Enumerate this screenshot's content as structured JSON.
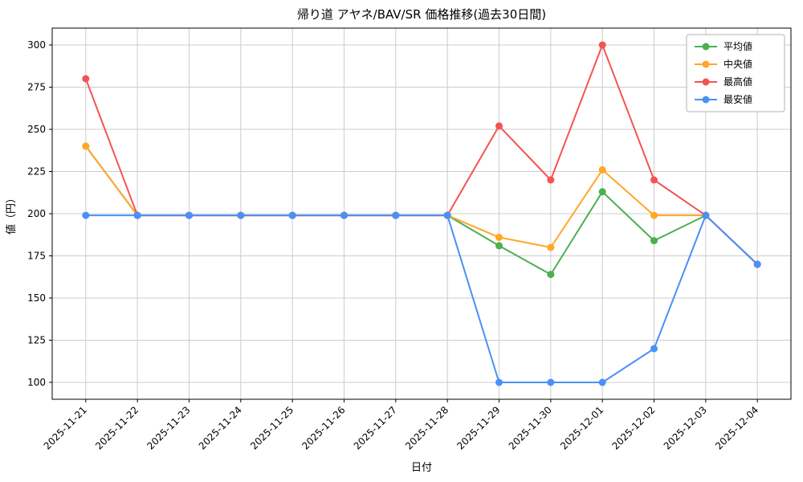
{
  "chart_data": {
    "type": "line",
    "title": "帰り道 アヤネ/BAV/SR 価格推移(過去30日間)",
    "xlabel": "日付",
    "ylabel": "値（円）",
    "categories": [
      "2025-11-21",
      "2025-11-22",
      "2025-11-23",
      "2025-11-24",
      "2025-11-25",
      "2025-11-26",
      "2025-11-27",
      "2025-11-28",
      "2025-11-29",
      "2025-11-30",
      "2025-12-01",
      "2025-12-02",
      "2025-12-03",
      "2025-12-04"
    ],
    "series": [
      {
        "key": "average",
        "name": "平均値",
        "color": "#4caf50",
        "values": [
          240,
          199,
          199,
          199,
          199,
          199,
          199,
          199,
          181,
          164,
          213,
          184,
          199,
          170
        ]
      },
      {
        "key": "median",
        "name": "中央値",
        "color": "#ffa726",
        "values": [
          240,
          199,
          199,
          199,
          199,
          199,
          199,
          199,
          186,
          180,
          226,
          199,
          199,
          170
        ]
      },
      {
        "key": "highest",
        "name": "最高値",
        "color": "#f55353",
        "values": [
          280,
          199,
          199,
          199,
          199,
          199,
          199,
          199,
          252,
          220,
          300,
          220,
          199,
          170
        ]
      },
      {
        "key": "lowest",
        "name": "最安値",
        "color": "#4a90f7",
        "values": [
          199,
          199,
          199,
          199,
          199,
          199,
          199,
          199,
          100,
          100,
          100,
          120,
          199,
          170
        ]
      }
    ],
    "yticks": [
      100,
      125,
      150,
      175,
      200,
      225,
      250,
      275,
      300
    ],
    "ylim": [
      90,
      310
    ],
    "xlim": [
      -0.65,
      13.65
    ],
    "grid": true,
    "grid_color": "#cccccc",
    "legend_position": "top-right"
  }
}
